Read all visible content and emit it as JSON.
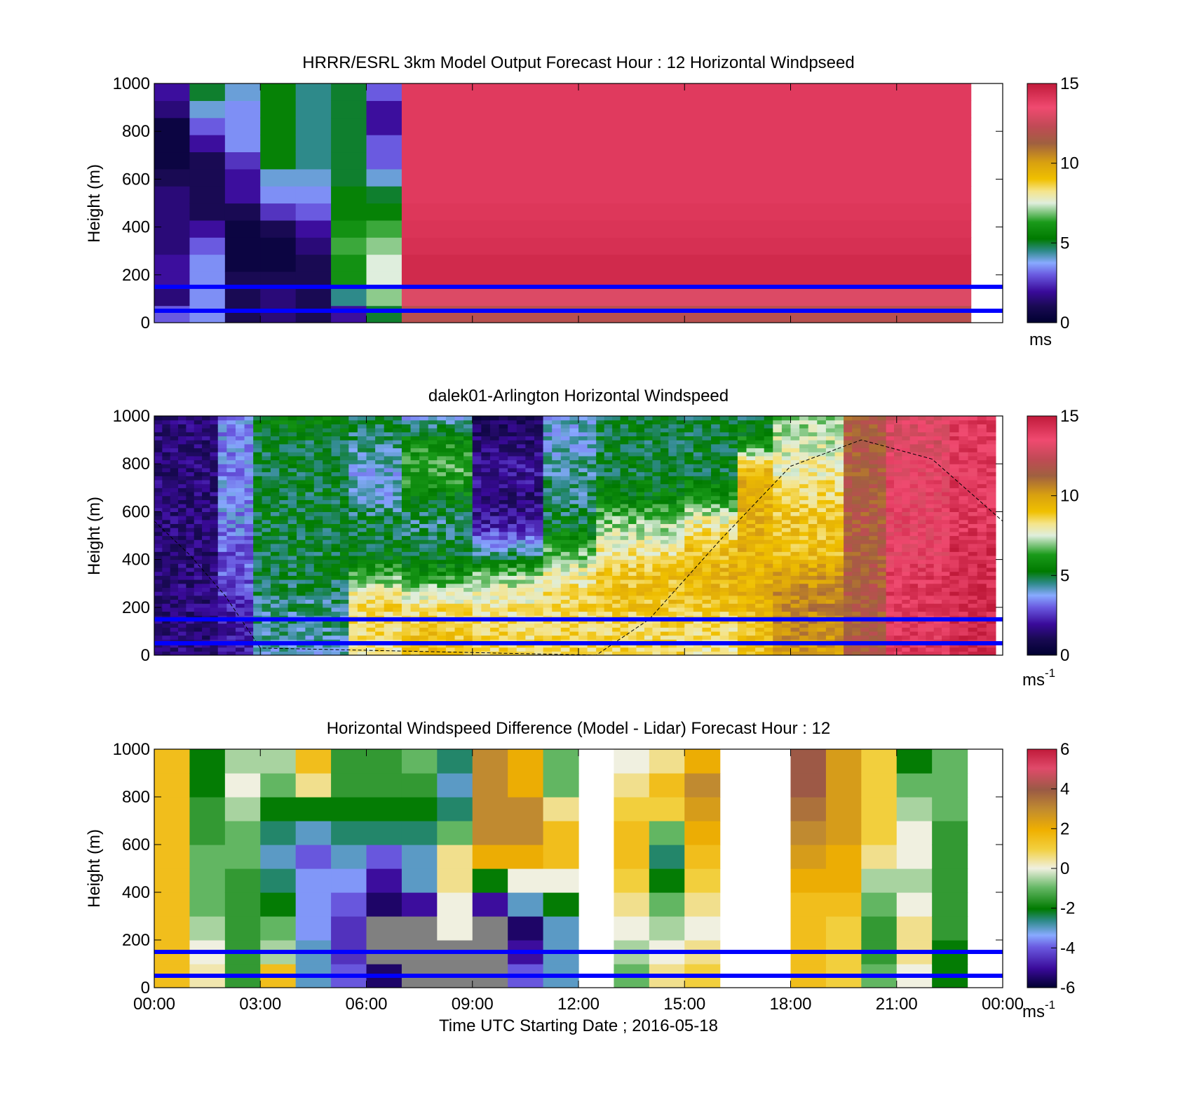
{
  "figure": {
    "xlabel": "Time UTC  Starting Date ; 2016-05-18",
    "x_ticklabels": [
      "00:00",
      "03:00",
      "06:00",
      "09:00",
      "12:00",
      "15:00",
      "18:00",
      "21:00",
      "00:00"
    ]
  },
  "chart_data": [
    {
      "type": "heatmap",
      "title": "HRRR/ESRL 3km Model Output   Forecast Hour : 12 Horizontal Windpseed",
      "ylabel": "Height (m)",
      "xlim_hours": [
        0,
        24
      ],
      "ylim": [
        0,
        1000
      ],
      "yticks": [
        "0",
        "200",
        "400",
        "600",
        "800",
        "1000"
      ],
      "colorbar": {
        "min": 0,
        "max": 15,
        "ticks": [
          "0",
          "5",
          "10",
          "15"
        ],
        "unit": "ms",
        "palette": "wind"
      },
      "reference_lines_m": [
        50,
        150
      ],
      "columns": [
        {
          "start_h": 0,
          "end_h": 1,
          "values_bottom_to_top": [
            3,
            1.5,
            2,
            2,
            1.5,
            1.5,
            1.5,
            1.5,
            1,
            0.5,
            0.5,
            0.5,
            1.5,
            2
          ]
        },
        {
          "start_h": 1,
          "end_h": 2,
          "values_bottom_to_top": [
            3.5,
            3.5,
            3.5,
            3.5,
            3,
            2,
            1,
            1,
            1,
            1,
            2,
            3,
            4,
            5
          ]
        },
        {
          "start_h": 2,
          "end_h": 3,
          "values_bottom_to_top": [
            1,
            1,
            1,
            0.5,
            0.5,
            0.5,
            1,
            2,
            2,
            2.5,
            3.5,
            3.5,
            3.5,
            4
          ]
        },
        {
          "start_h": 3,
          "end_h": 4,
          "values_bottom_to_top": [
            1.5,
            1.5,
            1,
            0.5,
            0.5,
            1,
            2.5,
            3.5,
            4,
            5.5,
            5.5,
            5.5,
            5.5,
            5.5
          ]
        },
        {
          "start_h": 4,
          "end_h": 5,
          "values_bottom_to_top": [
            1,
            1,
            1,
            1,
            1.5,
            2,
            3,
            3.5,
            4,
            4.5,
            4.5,
            4.5,
            4.5,
            4.5
          ]
        },
        {
          "start_h": 5,
          "end_h": 6,
          "values_bottom_to_top": [
            2,
            4.5,
            6,
            6,
            6.5,
            6,
            5.5,
            5.5,
            5,
            5,
            5,
            5,
            5,
            5
          ]
        },
        {
          "start_h": 6,
          "end_h": 7,
          "values_bottom_to_top": [
            5,
            7,
            7.5,
            7.5,
            7,
            6.5,
            5.5,
            5,
            4,
            3,
            3,
            2,
            2,
            3
          ]
        },
        {
          "start_h": 7,
          "end_h": 23.1,
          "values_bottom_to_top": [
            12,
            13,
            14.5,
            14.5,
            14.3,
            14.2,
            14.1,
            14,
            14,
            14,
            14,
            14,
            14,
            14
          ]
        }
      ]
    },
    {
      "type": "heatmap",
      "title": "dalek01-Arlington  Horizontal Windspeed",
      "ylabel": "Height (m)",
      "xlim_hours": [
        0,
        24
      ],
      "ylim": [
        0,
        1000
      ],
      "yticks": [
        "0",
        "200",
        "400",
        "600",
        "800",
        "1000"
      ],
      "colorbar": {
        "min": 0,
        "max": 15,
        "ticks": [
          "0",
          "5",
          "10",
          "15"
        ],
        "unit": "ms",
        "unit_exponent": "-1",
        "palette": "wind"
      },
      "reference_lines_m": [
        50,
        150
      ],
      "dashed_curve": [
        [
          0,
          560
        ],
        [
          1,
          420
        ],
        [
          2,
          250
        ],
        [
          3,
          30
        ],
        [
          12.5,
          0
        ],
        [
          14,
          150
        ],
        [
          16,
          480
        ],
        [
          18,
          790
        ],
        [
          20,
          900
        ],
        [
          22,
          820
        ],
        [
          24,
          560
        ]
      ],
      "column_profiles": [
        {
          "start_h": 0,
          "end_h": 1.8,
          "values_bottom_to_top": [
            1.5,
            1.5,
            1.5,
            1.5,
            1.5,
            1.5,
            1.5,
            1.5,
            1.5,
            1.5
          ]
        },
        {
          "start_h": 1.8,
          "end_h": 2.8,
          "values_bottom_to_top": [
            2,
            2,
            2.5,
            3,
            3,
            3.5,
            3.5,
            3.5,
            3.5,
            3.5
          ]
        },
        {
          "start_h": 2.8,
          "end_h": 5.5,
          "values_bottom_to_top": [
            4,
            4.5,
            4.5,
            5,
            5,
            5,
            5,
            5,
            5,
            5.5
          ]
        },
        {
          "start_h": 5.5,
          "end_h": 7,
          "values_bottom_to_top": [
            8,
            8.5,
            8.5,
            6.5,
            5,
            5,
            4,
            4,
            4.5,
            5
          ]
        },
        {
          "start_h": 7,
          "end_h": 9,
          "values_bottom_to_top": [
            9,
            9,
            8,
            6,
            5,
            4.5,
            5.5,
            6.5,
            6,
            4
          ]
        },
        {
          "start_h": 9,
          "end_h": 11,
          "values_bottom_to_top": [
            8.5,
            8.5,
            8,
            7,
            4,
            2,
            1.5,
            2,
            1.5,
            1
          ]
        },
        {
          "start_h": 11,
          "end_h": 12.5,
          "values_bottom_to_top": [
            8.5,
            8.5,
            8.5,
            8,
            6.5,
            5,
            4.5,
            4.5,
            4,
            4
          ]
        },
        {
          "start_h": 12.5,
          "end_h": 15,
          "values_bottom_to_top": [
            8.5,
            8.5,
            9,
            9,
            8,
            7,
            5.5,
            5,
            5,
            5
          ]
        },
        {
          "start_h": 15,
          "end_h": 16.5,
          "values_bottom_to_top": [
            8,
            8.5,
            9,
            9.5,
            9,
            8,
            6,
            5,
            5,
            5
          ]
        },
        {
          "start_h": 16.5,
          "end_h": 17.5,
          "values_bottom_to_top": [
            9,
            9,
            9.5,
            9.5,
            9.5,
            9.5,
            9.5,
            9.5,
            6,
            5
          ]
        },
        {
          "start_h": 17.5,
          "end_h": 19.5,
          "values_bottom_to_top": [
            10,
            10.5,
            10.5,
            10,
            9,
            9,
            8.5,
            8,
            7.5,
            7
          ]
        },
        {
          "start_h": 19.5,
          "end_h": 20.7,
          "values_bottom_to_top": [
            11.5,
            11.5,
            11.5,
            11.5,
            11.5,
            11.5,
            11.5,
            11.5,
            11.5,
            11.5
          ]
        },
        {
          "start_h": 20.7,
          "end_h": 22.5,
          "values_bottom_to_top": [
            14,
            14,
            14,
            14,
            13.5,
            13.5,
            13.5,
            13.5,
            13,
            13
          ]
        },
        {
          "start_h": 22.5,
          "end_h": 23.8,
          "values_bottom_to_top": [
            14.5,
            14.5,
            14.5,
            14.5,
            14.5,
            14,
            14,
            14,
            14,
            14
          ]
        }
      ]
    },
    {
      "type": "heatmap",
      "title": "Horizontal Windspeed Difference (Model - Lidar) Forecast Hour : 12",
      "ylabel": "Height (m)",
      "xlim_hours": [
        0,
        24
      ],
      "ylim": [
        0,
        1000
      ],
      "yticks": [
        "0",
        "200",
        "400",
        "600",
        "800",
        "1000"
      ],
      "colorbar": {
        "min": -6,
        "max": 6,
        "ticks": [
          "-6",
          "-4",
          "-2",
          "0",
          "2",
          "4",
          "6"
        ],
        "unit": "ms",
        "unit_exponent": "-1",
        "palette": "diff"
      },
      "reference_lines_m": [
        50,
        150
      ],
      "columns": [
        {
          "start_h": 0,
          "end_h": 1,
          "values_bottom_to_top": [
            1.5,
            1.5,
            1.5,
            1.5,
            1.5,
            1.5,
            1.5,
            1.5,
            1.5,
            1.5
          ]
        },
        {
          "start_h": 1,
          "end_h": 2,
          "values_bottom_to_top": [
            0.3,
            0,
            -0.5,
            -1,
            -1,
            -1,
            -1.5,
            -1.5,
            -2,
            -2
          ]
        },
        {
          "start_h": 2,
          "end_h": 3,
          "values_bottom_to_top": [
            -1.5,
            -1.5,
            -1.5,
            -1.5,
            -1.5,
            -1,
            -1,
            -0.5,
            0,
            -0.5
          ]
        },
        {
          "start_h": 3,
          "end_h": 4,
          "values_bottom_to_top": [
            1.5,
            -0.5,
            -1,
            -2,
            -2.5,
            -3,
            -2.5,
            -2,
            -1,
            -0.5
          ]
        },
        {
          "start_h": 4,
          "end_h": 5,
          "values_bottom_to_top": [
            -3,
            -3,
            -3.5,
            -3.5,
            -3.5,
            -4,
            -3,
            -2,
            0.5,
            1.5
          ]
        },
        {
          "start_h": 5,
          "end_h": 6,
          "values_bottom_to_top": [
            -4,
            -4.5,
            -4.5,
            -4,
            -3.5,
            -3,
            -2.5,
            -2,
            -1.5,
            -1.5
          ]
        },
        {
          "start_h": 6,
          "end_h": 7,
          "values_bottom_to_top": [
            -5.5,
            -6.5,
            -6.5,
            -5.5,
            -5,
            -4,
            -2.5,
            -2,
            -1.5,
            -1.5
          ]
        },
        {
          "start_h": 7,
          "end_h": 8,
          "values_bottom_to_top": [
            -6.5,
            -6.5,
            -6.5,
            -5,
            -3,
            -3,
            -2.5,
            -2,
            -1.5,
            -1
          ]
        },
        {
          "start_h": 8,
          "end_h": 9,
          "values_bottom_to_top": [
            -6.5,
            -6.5,
            0,
            0,
            0.5,
            0.5,
            -1,
            -2.5,
            -3,
            -2.5
          ]
        },
        {
          "start_h": 9,
          "end_h": 10,
          "values_bottom_to_top": [
            -6.5,
            -6.5,
            -6.5,
            -5,
            -2,
            2,
            3,
            3,
            3,
            3
          ]
        },
        {
          "start_h": 10,
          "end_h": 11,
          "values_bottom_to_top": [
            -4,
            -5,
            -5.5,
            -3,
            0,
            2,
            3,
            3,
            2,
            2
          ]
        },
        {
          "start_h": 11,
          "end_h": 12,
          "values_bottom_to_top": [
            -3,
            -3,
            -3,
            -2,
            0,
            1.5,
            1.5,
            0.5,
            -1,
            -1
          ]
        },
        {
          "start_h": 13,
          "end_h": 14,
          "values_bottom_to_top": [
            -1,
            -0.5,
            0,
            0.5,
            1,
            1.5,
            1.5,
            1,
            0.5,
            0
          ]
        },
        {
          "start_h": 14,
          "end_h": 15,
          "values_bottom_to_top": [
            0.5,
            0,
            -0.5,
            -1,
            -2,
            -2.5,
            -1,
            1,
            1.5,
            0.5
          ]
        },
        {
          "start_h": 15,
          "end_h": 16,
          "values_bottom_to_top": [
            1,
            0.5,
            0,
            0.5,
            1,
            1.5,
            2,
            2.5,
            3,
            2
          ]
        },
        {
          "start_h": 18,
          "end_h": 19,
          "values_bottom_to_top": [
            1.5,
            1.5,
            1.5,
            1.5,
            2,
            2.5,
            3,
            3.5,
            4,
            4
          ]
        },
        {
          "start_h": 19,
          "end_h": 20,
          "values_bottom_to_top": [
            1,
            1,
            1,
            1.5,
            2,
            2,
            2.5,
            2.5,
            2.5,
            2.5
          ]
        },
        {
          "start_h": 20,
          "end_h": 21,
          "values_bottom_to_top": [
            -1,
            -1.5,
            -1.5,
            -1,
            -0.5,
            0.5,
            1,
            1,
            1,
            1
          ]
        },
        {
          "start_h": 21,
          "end_h": 22,
          "values_bottom_to_top": [
            0,
            0.5,
            0.5,
            0,
            -0.5,
            0,
            0,
            -0.5,
            -1,
            -2
          ]
        },
        {
          "start_h": 22,
          "end_h": 23,
          "values_bottom_to_top": [
            -2,
            -2,
            -1.5,
            -1.5,
            -1.5,
            -1.5,
            -1.5,
            -1,
            -1,
            -1
          ]
        }
      ]
    }
  ]
}
